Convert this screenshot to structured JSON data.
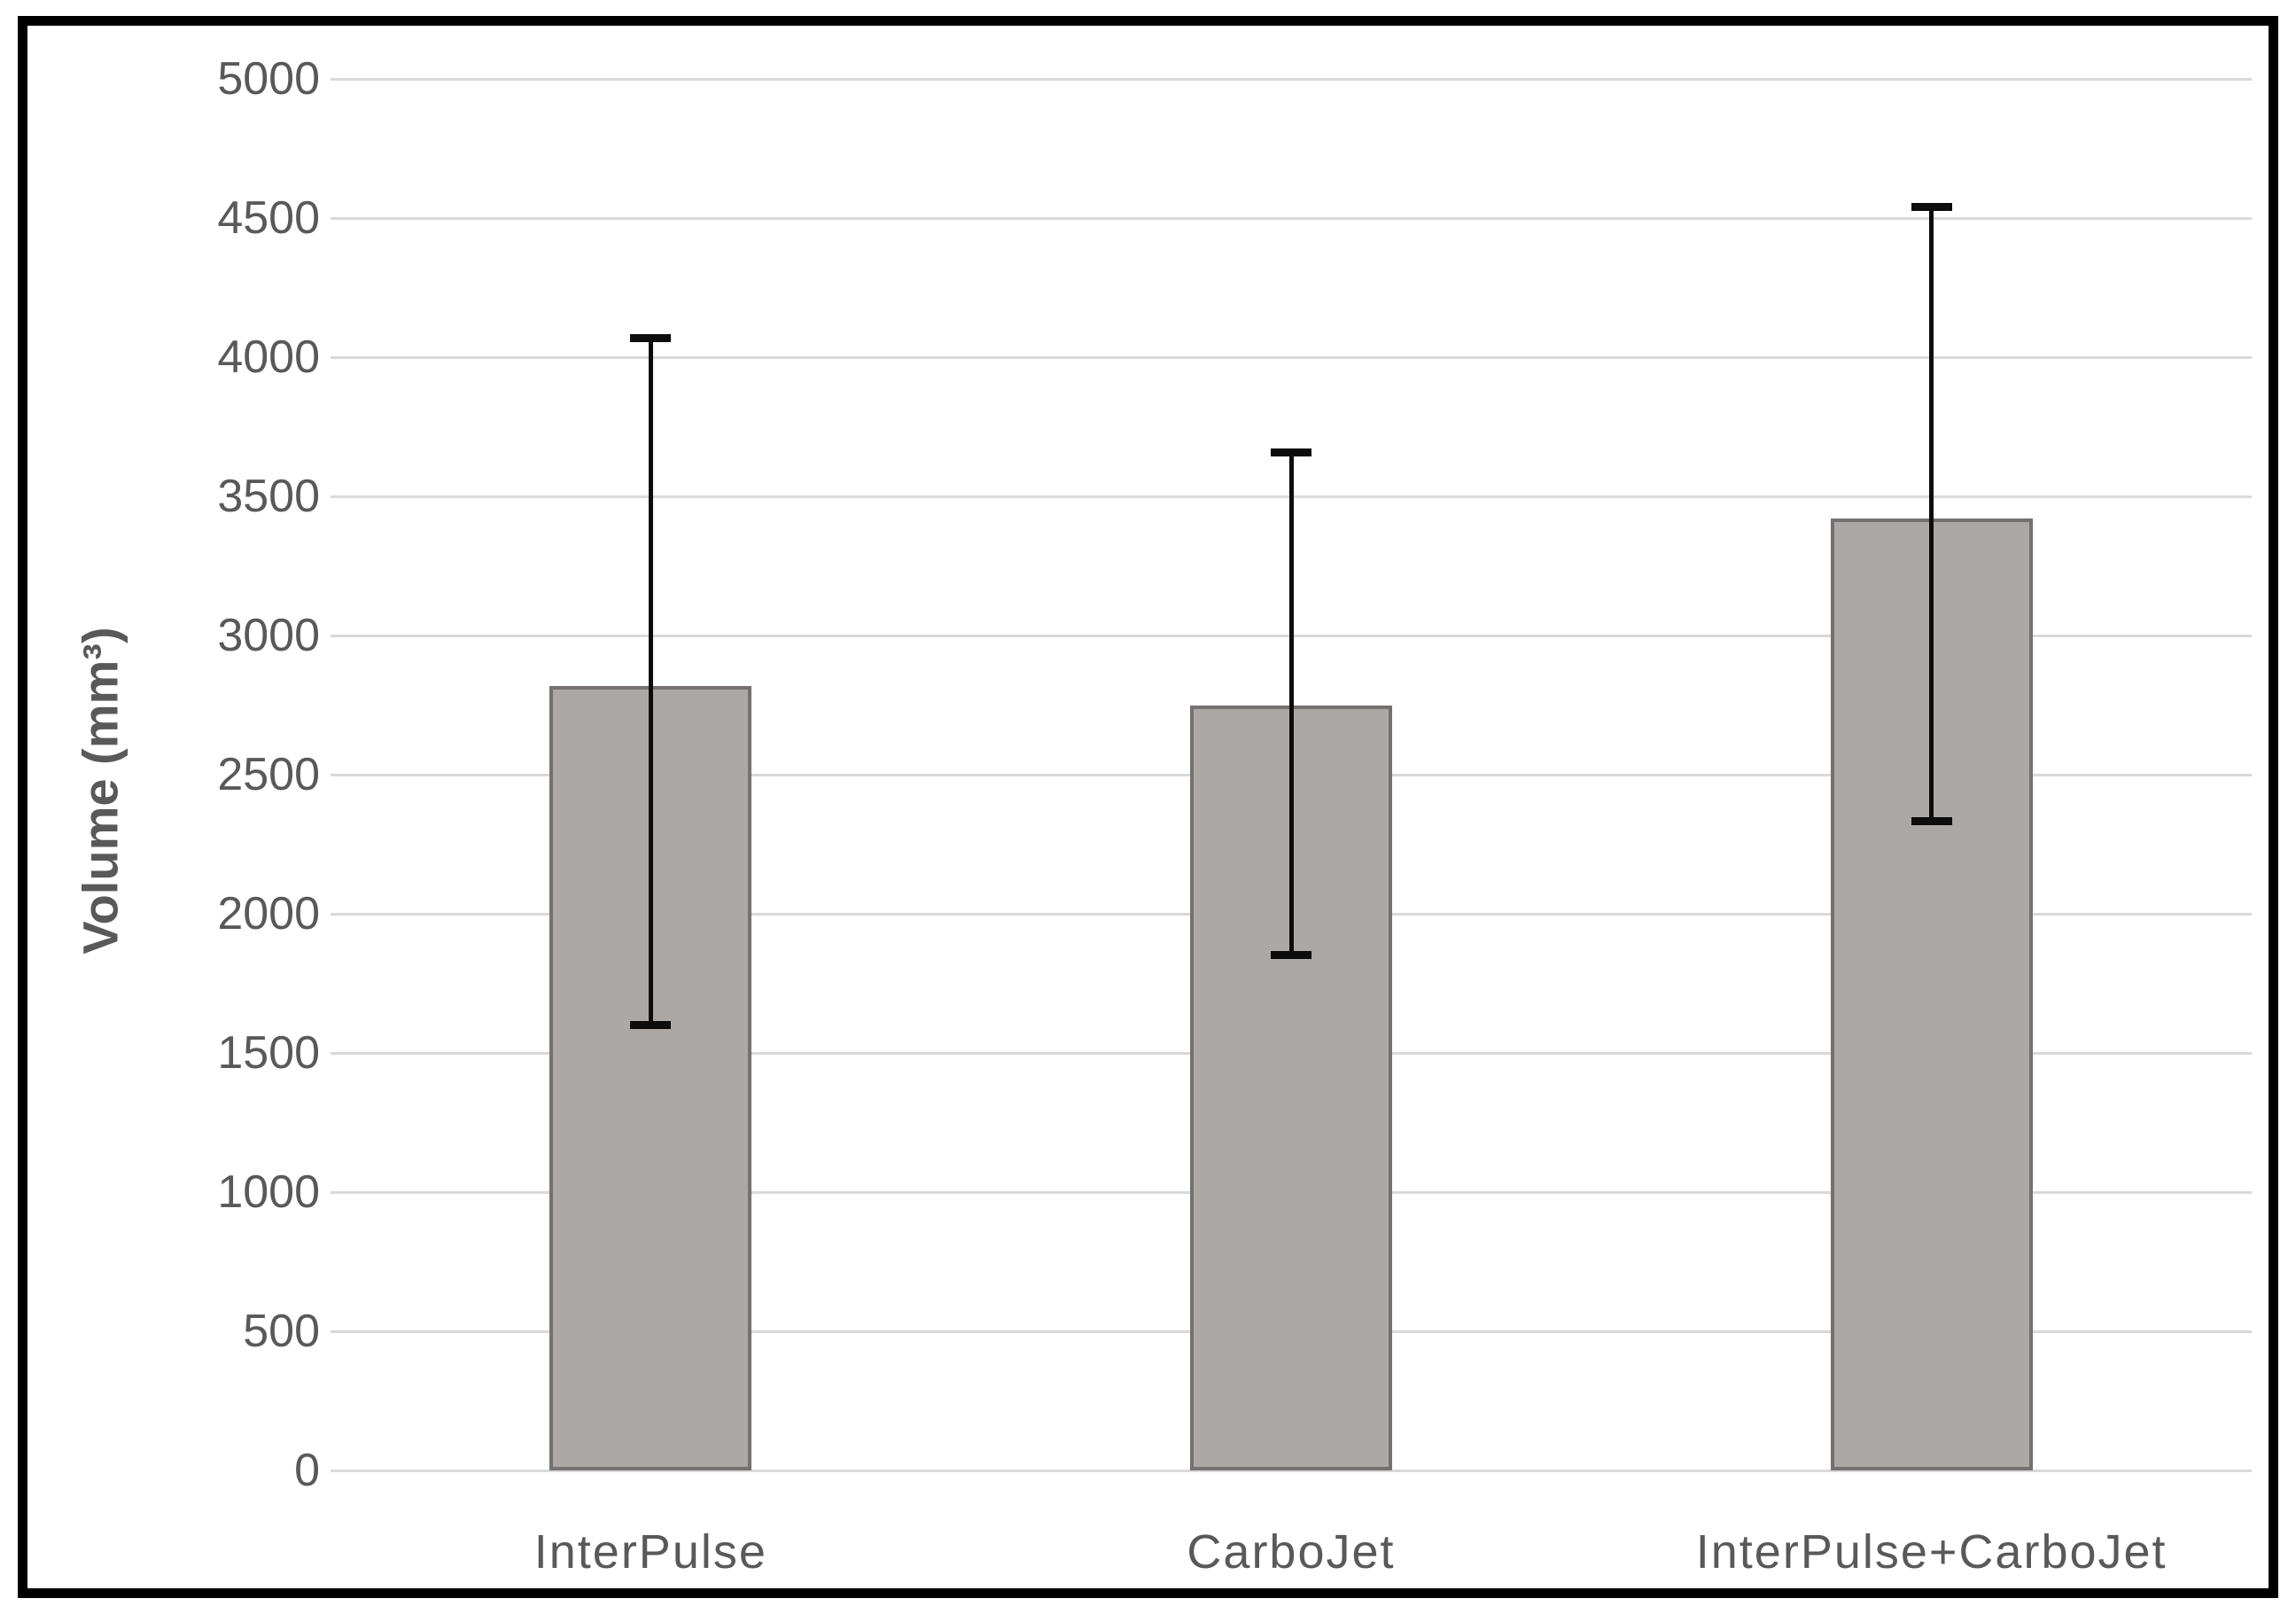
{
  "figure": {
    "kind": "statistical bar chart with error bars",
    "frame_color": "#000000",
    "background_color": "#ffffff"
  },
  "chart_data": {
    "type": "bar",
    "title": "",
    "xlabel": "",
    "ylabel": "Volume (mm³)",
    "categories": [
      "InterPulse",
      "CarboJet",
      "InterPulse+CarboJet"
    ],
    "values": [
      2820,
      2750,
      3420
    ],
    "error_bars": {
      "low": [
        1600,
        1850,
        2330
      ],
      "high": [
        4070,
        3660,
        4540
      ]
    },
    "ylim": [
      0,
      5000
    ],
    "ytick_interval": 500,
    "yticks": [
      5000,
      4500,
      4000,
      3500,
      3000,
      2500,
      2000,
      1500,
      1000,
      500,
      0
    ],
    "grid": "horizontal",
    "legend_position": "none",
    "bar_fill_color": "#aca8a6",
    "bar_border_color": "#757171",
    "error_bar_color": "#0d0d0d",
    "gridline_color": "#d9d9d9",
    "tick_label_color": "#595959",
    "axis_title_color": "#595959"
  }
}
